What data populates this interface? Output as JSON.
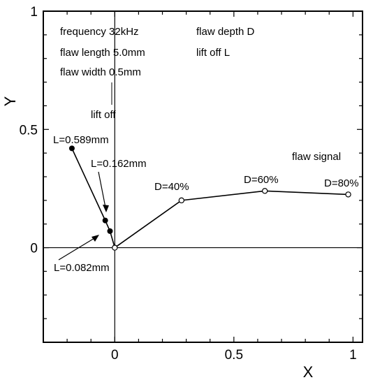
{
  "chart_data": {
    "type": "line",
    "title": "",
    "xlabel": "X",
    "ylabel": "Y",
    "xlim": [
      -0.3,
      1.04
    ],
    "ylim": [
      -0.4,
      1.0
    ],
    "x_ticks": [
      {
        "value": 0,
        "label": "0"
      },
      {
        "value": 0.5,
        "label": "0.5"
      },
      {
        "value": 1,
        "label": "1"
      }
    ],
    "y_ticks": [
      {
        "value": 0,
        "label": "0"
      },
      {
        "value": 0.5,
        "label": "0.5"
      },
      {
        "value": 1,
        "label": "1"
      }
    ],
    "series": [
      {
        "marker": "filled",
        "points": [
          {
            "x": -0.18,
            "y": 0.42
          },
          {
            "x": -0.04,
            "y": 0.115
          },
          {
            "x": -0.02,
            "y": 0.07
          },
          {
            "x": 0.0,
            "y": 0.0
          }
        ]
      },
      {
        "marker": "open",
        "points": [
          {
            "x": 0.0,
            "y": 0.0
          },
          {
            "x": 0.28,
            "y": 0.2
          },
          {
            "x": 0.63,
            "y": 0.24
          },
          {
            "x": 0.98,
            "y": 0.225
          }
        ]
      }
    ],
    "annotations": {
      "info": [
        "frequency 32kHz",
        "flaw length 5.0mm",
        "flaw width 0.5mm"
      ],
      "flaw_depth": "flaw depth D",
      "lift_off_legend": "lift off L",
      "lift_off": "lift off",
      "flaw_signal": "flaw signal",
      "lift_labels": [
        "L=0.589mm",
        "L=0.162mm",
        "L=0.082mm"
      ],
      "depth_labels": [
        "D=40%",
        "D=60%",
        "D=80%"
      ]
    }
  }
}
